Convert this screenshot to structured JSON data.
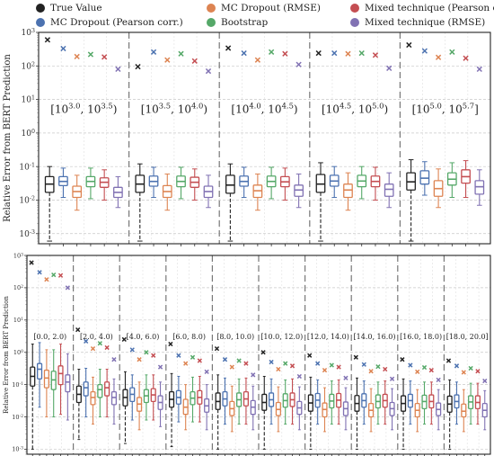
{
  "chart_data": [
    {
      "type": "box",
      "ylabel": "Relative Error from BERT Prediction",
      "yscale": "log",
      "ylim": [
        0.0005,
        1000
      ],
      "yticks": [
        "10^{-3}",
        "10^{-2}",
        "10^{-1}",
        "10^{0}",
        "10^{1}",
        "10^{2}",
        "10^{3}"
      ],
      "grid": true,
      "legend": {
        "placement": "top",
        "entries": [
          {
            "name": "True Value",
            "color": "#222222"
          },
          {
            "name": "MC Dropout (Pearson corr.)",
            "color": "#4c72b0"
          },
          {
            "name": "MC Dropout (RMSE)",
            "color": "#dd8452"
          },
          {
            "name": "Bootstrap",
            "color": "#55a868"
          },
          {
            "name": "Mixed technique (Pearson corr.)",
            "color": "#c44e52"
          },
          {
            "name": "Mixed technique (RMSE)",
            "color": "#8172b3"
          }
        ]
      },
      "groups": [
        {
          "label": "[10^{3.0}, 10^{3.5})",
          "medians": [
            0.03,
            0.036,
            0.018,
            0.036,
            0.034,
            0.017
          ],
          "q1": [
            0.017,
            0.027,
            0.012,
            0.025,
            0.024,
            0.012
          ],
          "q3": [
            0.05,
            0.05,
            0.026,
            0.05,
            0.046,
            0.024
          ],
          "whisker_low": [
            0.0006,
            0.012,
            0.005,
            0.011,
            0.01,
            0.006
          ],
          "whisker_high": [
            0.1,
            0.09,
            0.055,
            0.09,
            0.08,
            0.05
          ],
          "markers": [
            600,
            330,
            190,
            220,
            185,
            80
          ]
        },
        {
          "label": "[10^{3.5}, 10^{4.0})",
          "medians": [
            0.03,
            0.036,
            0.018,
            0.036,
            0.034,
            0.018
          ],
          "q1": [
            0.017,
            0.026,
            0.012,
            0.025,
            0.024,
            0.012
          ],
          "q3": [
            0.055,
            0.052,
            0.027,
            0.052,
            0.048,
            0.026
          ],
          "whisker_low": [
            0.0006,
            0.012,
            0.005,
            0.011,
            0.01,
            0.006
          ],
          "whisker_high": [
            0.12,
            0.095,
            0.06,
            0.095,
            0.085,
            0.055
          ],
          "markers": [
            95,
            260,
            150,
            230,
            140,
            70
          ]
        },
        {
          "label": "[10^{4.0}, 10^{4.5})",
          "medians": [
            0.028,
            0.036,
            0.019,
            0.036,
            0.035,
            0.02
          ],
          "q1": [
            0.016,
            0.026,
            0.012,
            0.025,
            0.025,
            0.013
          ],
          "q3": [
            0.055,
            0.052,
            0.028,
            0.052,
            0.05,
            0.028
          ],
          "whisker_low": [
            0.0006,
            0.012,
            0.005,
            0.011,
            0.01,
            0.006
          ],
          "whisker_high": [
            0.12,
            0.095,
            0.06,
            0.095,
            0.09,
            0.06
          ],
          "markers": [
            340,
            240,
            150,
            260,
            230,
            110
          ]
        },
        {
          "label": "[10^{4.5}, 10^{5.0})",
          "medians": [
            0.03,
            0.037,
            0.02,
            0.037,
            0.036,
            0.021
          ],
          "q1": [
            0.017,
            0.026,
            0.012,
            0.025,
            0.025,
            0.013
          ],
          "q3": [
            0.058,
            0.055,
            0.03,
            0.055,
            0.052,
            0.03
          ],
          "whisker_low": [
            0.0006,
            0.012,
            0.005,
            0.011,
            0.01,
            0.006
          ],
          "whisker_high": [
            0.13,
            0.1,
            0.065,
            0.1,
            0.095,
            0.065
          ],
          "markers": [
            240,
            240,
            230,
            240,
            210,
            85
          ]
        },
        {
          "label": "[10^{5.0}, 10^{5.7}]",
          "medians": [
            0.035,
            0.045,
            0.022,
            0.042,
            0.05,
            0.025
          ],
          "q1": [
            0.02,
            0.03,
            0.013,
            0.028,
            0.032,
            0.015
          ],
          "q3": [
            0.065,
            0.075,
            0.038,
            0.065,
            0.08,
            0.038
          ],
          "whisker_low": [
            0.0006,
            0.014,
            0.006,
            0.012,
            0.012,
            0.007
          ],
          "whisker_high": [
            0.16,
            0.14,
            0.085,
            0.13,
            0.15,
            0.08
          ],
          "markers": [
            420,
            280,
            180,
            260,
            170,
            80
          ]
        }
      ]
    },
    {
      "type": "box",
      "ylabel": "Relative Error from BERT Prediction",
      "yscale": "log",
      "ylim": [
        0.0007,
        1000
      ],
      "yticks": [
        "10^{-3}",
        "10^{-2}",
        "10^{-1}",
        "10^{0}",
        "10^{1}",
        "10^{2}",
        "10^{3}"
      ],
      "grid": true,
      "groups": [
        {
          "label": "[0.0, 2.0)",
          "medians": [
            0.18,
            0.3,
            0.16,
            0.14,
            0.22,
            0.12
          ],
          "q1": [
            0.09,
            0.15,
            0.08,
            0.07,
            0.1,
            0.06
          ],
          "q3": [
            0.35,
            0.45,
            0.28,
            0.26,
            0.38,
            0.2
          ],
          "whisker_low": [
            0.001,
            0.02,
            0.01,
            0.01,
            0.012,
            0.008
          ],
          "whisker_high": [
            1.8,
            2.0,
            1.2,
            1.2,
            1.8,
            0.9
          ],
          "markers": [
            600,
            300,
            180,
            250,
            240,
            100
          ]
        },
        {
          "label": "[2.0, 4.0)",
          "medians": [
            0.05,
            0.08,
            0.04,
            0.07,
            0.08,
            0.04
          ],
          "q1": [
            0.028,
            0.045,
            0.024,
            0.04,
            0.045,
            0.024
          ],
          "q3": [
            0.09,
            0.12,
            0.06,
            0.1,
            0.12,
            0.06
          ],
          "whisker_low": [
            0.002,
            0.01,
            0.006,
            0.01,
            0.01,
            0.006
          ],
          "whisker_high": [
            0.3,
            0.32,
            0.17,
            0.3,
            0.3,
            0.15
          ],
          "markers": [
            5,
            2.2,
            1.3,
            1.9,
            1.4,
            0.6
          ]
        },
        {
          "label": "[4.0, 6.0)",
          "medians": [
            0.04,
            0.05,
            0.025,
            0.045,
            0.048,
            0.028
          ],
          "q1": [
            0.022,
            0.03,
            0.015,
            0.028,
            0.03,
            0.017
          ],
          "q3": [
            0.07,
            0.08,
            0.04,
            0.07,
            0.075,
            0.045
          ],
          "whisker_low": [
            0.0015,
            0.008,
            0.004,
            0.008,
            0.008,
            0.005
          ],
          "whisker_high": [
            0.25,
            0.2,
            0.12,
            0.2,
            0.2,
            0.12
          ],
          "markers": [
            2.5,
            1.2,
            0.6,
            1.0,
            0.8,
            0.35
          ]
        },
        {
          "label": "[6.0, 8.0)",
          "medians": [
            0.035,
            0.04,
            0.02,
            0.038,
            0.04,
            0.022
          ],
          "q1": [
            0.02,
            0.025,
            0.012,
            0.024,
            0.025,
            0.014
          ],
          "q3": [
            0.06,
            0.065,
            0.035,
            0.06,
            0.065,
            0.036
          ],
          "whisker_low": [
            0.0012,
            0.007,
            0.004,
            0.007,
            0.007,
            0.004
          ],
          "whisker_high": [
            0.22,
            0.18,
            0.1,
            0.17,
            0.18,
            0.1
          ],
          "markers": [
            1.8,
            0.8,
            0.45,
            0.7,
            0.55,
            0.25
          ]
        },
        {
          "label": "[8.0, 10.0)",
          "medians": [
            0.03,
            0.036,
            0.018,
            0.034,
            0.036,
            0.02
          ],
          "q1": [
            0.017,
            0.022,
            0.011,
            0.021,
            0.022,
            0.012
          ],
          "q3": [
            0.055,
            0.06,
            0.03,
            0.055,
            0.06,
            0.032
          ],
          "whisker_low": [
            0.001,
            0.006,
            0.0035,
            0.006,
            0.006,
            0.004
          ],
          "whisker_high": [
            0.2,
            0.16,
            0.09,
            0.15,
            0.16,
            0.09
          ],
          "markers": [
            1.3,
            0.6,
            0.35,
            0.55,
            0.45,
            0.2
          ]
        },
        {
          "label": "[10.0, 12.0)",
          "medians": [
            0.028,
            0.034,
            0.017,
            0.032,
            0.034,
            0.019
          ],
          "q1": [
            0.016,
            0.021,
            0.011,
            0.02,
            0.021,
            0.012
          ],
          "q3": [
            0.05,
            0.055,
            0.028,
            0.052,
            0.055,
            0.03
          ],
          "whisker_low": [
            0.001,
            0.006,
            0.0035,
            0.006,
            0.006,
            0.004
          ],
          "whisker_high": [
            0.18,
            0.15,
            0.085,
            0.14,
            0.15,
            0.085
          ],
          "markers": [
            1.0,
            0.5,
            0.3,
            0.45,
            0.38,
            0.18
          ]
        },
        {
          "label": "[12.0, 14.0)",
          "medians": [
            0.027,
            0.033,
            0.017,
            0.031,
            0.033,
            0.018
          ],
          "q1": [
            0.015,
            0.02,
            0.01,
            0.019,
            0.02,
            0.011
          ],
          "q3": [
            0.048,
            0.053,
            0.027,
            0.05,
            0.053,
            0.029
          ],
          "whisker_low": [
            0.001,
            0.006,
            0.0035,
            0.006,
            0.006,
            0.004
          ],
          "whisker_high": [
            0.17,
            0.14,
            0.08,
            0.13,
            0.14,
            0.08
          ],
          "markers": [
            0.8,
            0.45,
            0.28,
            0.4,
            0.35,
            0.16
          ]
        },
        {
          "label": "[14.0, 16.0)",
          "medians": [
            0.026,
            0.032,
            0.016,
            0.03,
            0.032,
            0.018
          ],
          "q1": [
            0.015,
            0.02,
            0.01,
            0.019,
            0.02,
            0.011
          ],
          "q3": [
            0.046,
            0.052,
            0.026,
            0.048,
            0.05,
            0.028
          ],
          "whisker_low": [
            0.001,
            0.006,
            0.0035,
            0.006,
            0.006,
            0.004
          ],
          "whisker_high": [
            0.16,
            0.13,
            0.075,
            0.12,
            0.13,
            0.075
          ],
          "markers": [
            0.7,
            0.42,
            0.26,
            0.36,
            0.3,
            0.15
          ]
        },
        {
          "label": "[16.0, 18.0)",
          "medians": [
            0.026,
            0.032,
            0.016,
            0.03,
            0.03,
            0.017
          ],
          "q1": [
            0.015,
            0.02,
            0.01,
            0.018,
            0.019,
            0.011
          ],
          "q3": [
            0.045,
            0.05,
            0.026,
            0.047,
            0.048,
            0.027
          ],
          "whisker_low": [
            0.001,
            0.006,
            0.0035,
            0.006,
            0.006,
            0.004
          ],
          "whisker_high": [
            0.15,
            0.13,
            0.07,
            0.12,
            0.12,
            0.07
          ],
          "markers": [
            0.6,
            0.4,
            0.25,
            0.34,
            0.28,
            0.14
          ]
        },
        {
          "label": "[18.0, 20.0]",
          "medians": [
            0.025,
            0.03,
            0.015,
            0.029,
            0.028,
            0.016
          ],
          "q1": [
            0.014,
            0.019,
            0.01,
            0.018,
            0.018,
            0.01
          ],
          "q3": [
            0.044,
            0.048,
            0.025,
            0.045,
            0.045,
            0.026
          ],
          "whisker_low": [
            0.001,
            0.006,
            0.0035,
            0.006,
            0.006,
            0.004
          ],
          "whisker_high": [
            0.14,
            0.12,
            0.07,
            0.11,
            0.11,
            0.065
          ],
          "markers": [
            0.55,
            0.38,
            0.24,
            0.32,
            0.26,
            0.13
          ]
        }
      ]
    }
  ]
}
